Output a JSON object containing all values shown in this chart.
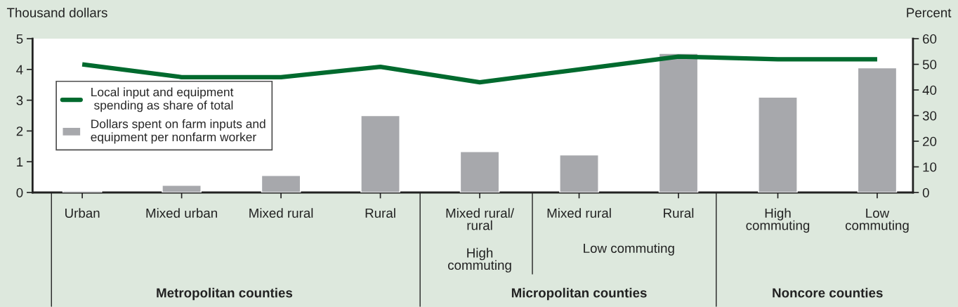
{
  "chart_data": {
    "type": "bar",
    "ylabel": "Thousand dollars",
    "y2label": "Percent",
    "categories": [
      "Urban",
      "Mixed urban",
      "Mixed rural",
      "Rural",
      "Mixed rural/\nrural",
      "Mixed rural",
      "Rural",
      "High\ncommuting",
      "Low\ncommuting"
    ],
    "series": [
      {
        "name": "Local input and equipment\n spending as share of total",
        "type": "line",
        "axis": "y2",
        "color": "#006a2e",
        "values": [
          50,
          45,
          45,
          49,
          43,
          48,
          53,
          52,
          52
        ]
      },
      {
        "name": "Dollars spent on farm inputs and\nequipment per nonfarm worker",
        "color": "#a7a8ac",
        "values": [
          0.05,
          0.23,
          0.55,
          2.5,
          1.33,
          1.22,
          4.52,
          3.1,
          4.05
        ]
      }
    ],
    "ylim": [
      0,
      5
    ],
    "yticks": [
      0,
      1,
      2,
      3,
      4,
      5
    ],
    "y2lim": [
      0,
      60
    ],
    "y2ticks": [
      0,
      10,
      20,
      30,
      40,
      50,
      60
    ],
    "grid": false,
    "legend": "left",
    "annotations": [
      "High\ncommuting",
      "Low commuting",
      "Metropolitan counties",
      "Micropolitan counties",
      "Noncore counties"
    ]
  }
}
